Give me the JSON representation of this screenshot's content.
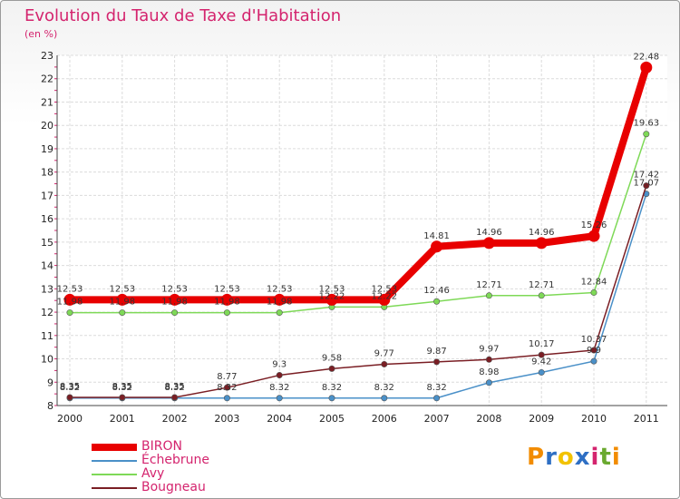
{
  "header": {
    "title": "Evolution du Taux de Taxe d'Habitation",
    "unit": "(en %)"
  },
  "logo": {
    "text": "Proxiti",
    "colors": [
      "#f28c00",
      "#2e6fc4",
      "#f2c200",
      "#2e6fc4",
      "#d4246e",
      "#6aa92f",
      "#f28c00"
    ]
  },
  "chart_data": {
    "type": "line",
    "x": [
      "2000",
      "2001",
      "2002",
      "2003",
      "2004",
      "2005",
      "2006",
      "2007",
      "2008",
      "2009",
      "2010",
      "2011"
    ],
    "ylim": [
      8,
      23
    ],
    "yticks": [
      "8",
      "9",
      "10",
      "11",
      "12",
      "13",
      "14",
      "15",
      "16",
      "17",
      "18",
      "19",
      "20",
      "21",
      "22",
      "23"
    ],
    "grid": true,
    "legend_position": "bottom-left",
    "series": [
      {
        "name": "BIRON",
        "color": "#e80000",
        "values": [
          12.53,
          12.53,
          12.53,
          12.53,
          12.53,
          12.53,
          12.53,
          14.81,
          14.96,
          14.96,
          15.26,
          22.48
        ],
        "labels": [
          "12.53",
          "12.53",
          "12.53",
          "12.53",
          "12.53",
          "12.53",
          "12.53",
          "14.81",
          "14.96",
          "14.96",
          "15.26",
          "22.48"
        ]
      },
      {
        "name": "Échebrune",
        "color": "#4a90c8",
        "values": [
          8.32,
          8.32,
          8.32,
          8.32,
          8.32,
          8.32,
          8.32,
          8.32,
          8.98,
          9.42,
          9.9,
          17.07
        ],
        "labels": [
          "8.32",
          "8.32",
          "8.32",
          "8.32",
          "8.32",
          "8.32",
          "8.32",
          "8.32",
          "8.98",
          "9.42",
          "9.9",
          "17.07"
        ]
      },
      {
        "name": "Avy",
        "color": "#7ed957",
        "values": [
          11.98,
          11.98,
          11.98,
          11.98,
          11.98,
          12.22,
          12.22,
          12.46,
          12.71,
          12.71,
          12.84,
          19.63
        ],
        "labels": [
          "11.98",
          "11.98",
          "11.98",
          "11.98",
          "11.98",
          "12.22",
          "12.22",
          "12.46",
          "12.71",
          "12.71",
          "12.84",
          "19.63"
        ]
      },
      {
        "name": "Bougneau",
        "color": "#7a1e24",
        "values": [
          8.35,
          8.35,
          8.35,
          8.77,
          9.3,
          9.58,
          9.77,
          9.87,
          9.97,
          10.17,
          10.37,
          17.42
        ],
        "labels": [
          "8.35",
          "8.35",
          "8.35",
          "8.77",
          "9.3",
          "9.58",
          "9.77",
          "9.87",
          "9.97",
          "10.17",
          "10.37",
          "17.42"
        ]
      }
    ]
  }
}
